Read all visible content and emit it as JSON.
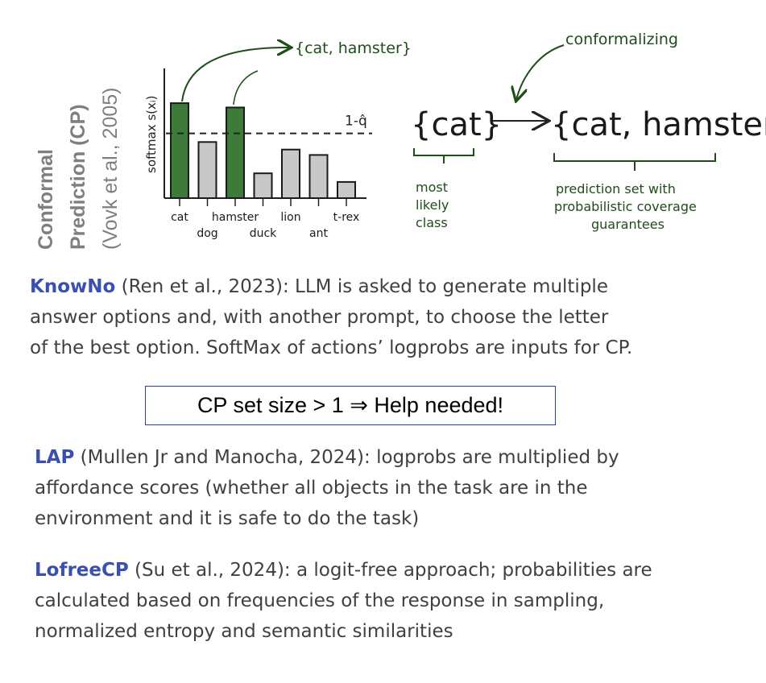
{
  "side_title": {
    "line1": "Conformal",
    "line2": "Prediction (CP)",
    "line3": "(Vovk et al., 2005)"
  },
  "chart_data": {
    "type": "bar",
    "categories": [
      "cat",
      "dog",
      "hamster",
      "duck",
      "lion",
      "ant",
      "t-rex"
    ],
    "values": [
      0.88,
      0.52,
      0.84,
      0.23,
      0.45,
      0.4,
      0.15
    ],
    "highlighted": [
      "cat",
      "hamster"
    ],
    "ylabel": "softmax s(xᵢ)",
    "threshold": {
      "label": "1-q̂",
      "value": 0.6
    },
    "annotation": "{cat, hamster}",
    "colors": {
      "selected": "#3e7a3a",
      "other": "#c8c8c8",
      "ink": "#1f4d1a"
    }
  },
  "diagram": {
    "set_single": "{cat}",
    "set_multi": "{cat, hamster}",
    "conformalizing_label": "conformalizing",
    "single_caption": [
      "most",
      "likely",
      "class"
    ],
    "multi_caption": [
      "prediction set with",
      "probabilistic coverage",
      "guarantees"
    ]
  },
  "knowno": {
    "name": "KnowNo",
    "line1": " (Ren et al., 2023): LLM is asked to generate multiple",
    "line2": "answer options and, with another prompt, to choose the letter",
    "line3": "of the best option. SoftMax of actions’ logprobs are inputs for CP."
  },
  "cp_box": "CP set size > 1 ⇒ Help needed!",
  "lap": {
    "name": "LAP",
    "line1": " (Mullen Jr and Manocha, 2024): logprobs are multiplied by",
    "line2": "affordance scores (whether all objects in the task are in the",
    "line3": "environment and it is safe to do the task)"
  },
  "lofree": {
    "name": "LofreeCP",
    "line1": " (Su et al., 2024):  a logit-free approach; probabilities are",
    "line2": "calculated based on frequencies of the response in sampling,",
    "line3": "normalized entropy and semantic similarities"
  }
}
